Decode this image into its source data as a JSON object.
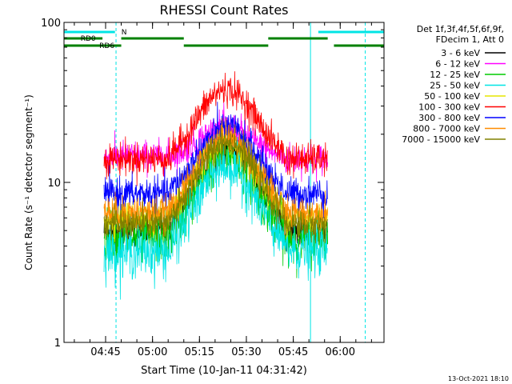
{
  "chart_data": {
    "type": "line",
    "title": "RHESSI Count Rates",
    "xlabel": "Start Time (10-Jan-11 04:31:42)",
    "ylabel": "Count Rate (s⁻¹ detector segment⁻¹)",
    "yscale": "log",
    "ylim": [
      1,
      100
    ],
    "xlim": [
      "04:31:42",
      "06:14:00"
    ],
    "x_ticks": [
      "04:45",
      "05:00",
      "05:15",
      "05:30",
      "05:45",
      "06:00"
    ],
    "y_ticks": [
      "1",
      "10",
      "100"
    ],
    "grid": false,
    "legend_placement": "right, outside plot",
    "legend_header": [
      "Det 1f,3f,4f,5f,6f,9f,",
      "FDecim 1, Att 0"
    ],
    "data_gap": {
      "before": "04:44:30",
      "after": "05:56:00"
    },
    "series": [
      {
        "name": "3 - 6 keV",
        "color": "#000000",
        "pre": 5.0,
        "peak": 17.0,
        "post": 5.0
      },
      {
        "name": "6 - 12 keV",
        "color": "#ff00ff",
        "pre": 14.5,
        "peak": 22.0,
        "post": 14.0
      },
      {
        "name": "12 - 25 keV",
        "color": "#00cc00",
        "pre": 4.5,
        "peak": 15.0,
        "post": 4.5
      },
      {
        "name": "25 - 50 keV",
        "color": "#00e5e5",
        "pre": 3.7,
        "peak": 12.5,
        "post": 3.8
      },
      {
        "name": "50 - 100 keV",
        "color": "#e5e500",
        "pre": 6.0,
        "peak": 18.0,
        "post": 6.0
      },
      {
        "name": "100 - 300 keV",
        "color": "#ff0000",
        "pre": 14.0,
        "peak": 38.0,
        "post": 14.0
      },
      {
        "name": "300 - 800 keV",
        "color": "#0000ff",
        "pre": 8.5,
        "peak": 22.0,
        "post": 8.5
      },
      {
        "name": "800 - 7000 keV",
        "color": "#ff8c00",
        "pre": 6.5,
        "peak": 19.0,
        "post": 6.5
      },
      {
        "name": "7000 - 15000 keV",
        "color": "#808000",
        "pre": 5.5,
        "peak": 18.0,
        "post": 5.5
      }
    ],
    "flag_bars": [
      {
        "label": "N",
        "color": "#00e5e5",
        "segments": [
          [
            "04:31:42",
            "04:48:00"
          ],
          [
            "05:53:00",
            "06:14:00"
          ]
        ]
      },
      {
        "label": "RD0",
        "color": "#008000",
        "segments": [
          [
            "04:31:42",
            "04:44:00"
          ],
          [
            "04:50:00",
            "05:10:00"
          ],
          [
            "05:37:00",
            "05:56:00"
          ]
        ]
      },
      {
        "label": "RD6",
        "color": "#008000",
        "segments": [
          [
            "04:31:42",
            "04:50:00"
          ],
          [
            "05:10:00",
            "05:37:00"
          ],
          [
            "05:58:00",
            "06:14:00"
          ]
        ]
      }
    ],
    "vlines": [
      {
        "time": "04:48:20",
        "style": "dashed",
        "color": "#00e5e5"
      },
      {
        "time": "05:50:30",
        "style": "solid",
        "color": "#00e5e5"
      },
      {
        "time": "06:08:00",
        "style": "dashed",
        "color": "#00e5e5"
      }
    ]
  },
  "footer": {
    "date": "13-Oct-2021 18:10"
  }
}
